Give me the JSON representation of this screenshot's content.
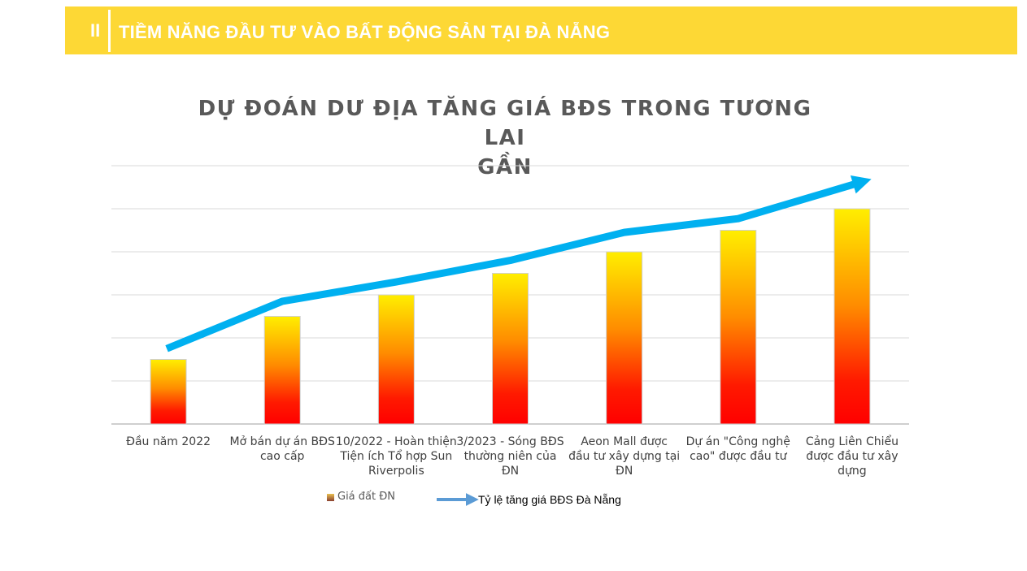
{
  "banner": {
    "number": "II",
    "title": "TIỀM NĂNG ĐẦU TƯ VÀO BẤT ĐỘNG SẢN TẠI ĐÀ NẴNG"
  },
  "chart_data": {
    "type": "bar",
    "title_lines": [
      "DỰ ĐOÁN DƯ ĐỊA TĂNG GIÁ BĐS TRONG TƯƠNG LAI",
      "GẦN"
    ],
    "categories": [
      [
        "Đầu năm 2022"
      ],
      [
        "Mở bán dự án BĐS",
        "cao cấp"
      ],
      [
        "10/2022 - Hoàn thiện",
        "Tiện ích Tổ hợp Sun",
        "Riverpolis"
      ],
      [
        "3/2023 - Sóng BĐS",
        "thường niên của",
        "ĐN"
      ],
      [
        "Aeon Mall được",
        "đầu tư xây dựng tại",
        "ĐN"
      ],
      [
        "Dự án \"Công nghệ",
        "cao\" được đầu tư"
      ],
      [
        "Cảng Liên Chiểu",
        "được đầu tư xây",
        "dựng"
      ]
    ],
    "ylim": [
      0,
      6
    ],
    "grid": true,
    "series": [
      {
        "name": "Giá đất ĐN",
        "kind": "bar",
        "values": [
          1.5,
          2.5,
          3,
          3.5,
          4,
          4.5,
          5
        ]
      },
      {
        "name": "Tỷ lệ tăng giá BĐS Đà Nẵng",
        "kind": "line",
        "values": [
          1.75,
          2.85,
          3.3,
          3.8,
          4.45,
          4.77,
          5.6
        ]
      }
    ],
    "legend_position": "bottom",
    "colors": {
      "bar_top": "#ffeb00",
      "bar_mid": "#ff8a00",
      "bar_bottom": "#ff0000",
      "line": "#00b0f0"
    }
  }
}
